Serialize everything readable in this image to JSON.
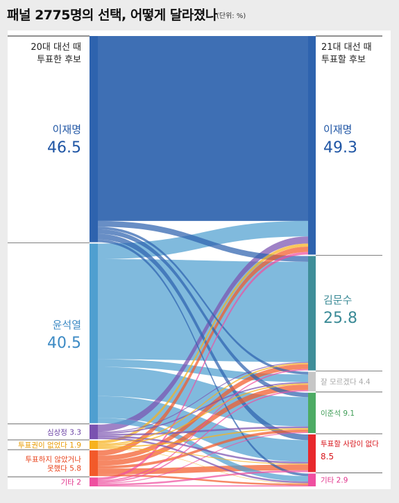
{
  "header": {
    "title": "패널 2775명의 선택, 어떻게 달라졌나",
    "unit": "(단위: %)"
  },
  "chart_data": {
    "type": "sankey",
    "left_header": [
      "20대 대선 때",
      "투표한 후보"
    ],
    "right_header": [
      "21대 대선 때",
      "투표할 후보"
    ],
    "left": [
      {
        "id": "lee",
        "name": "이재명",
        "value": 46.5,
        "color": "#2e63ae",
        "text_color": "#1f55a4"
      },
      {
        "id": "yoon",
        "name": "윤석열",
        "value": 40.5,
        "color": "#4f9fd0",
        "text_color": "#3c8ac4"
      },
      {
        "id": "shim",
        "name": "심상정",
        "value": 3.3,
        "color": "#7a52b0",
        "text_color": "#6a40a4"
      },
      {
        "id": "novote_right",
        "name": "투표권이 없었다",
        "value": 1.9,
        "color": "#f7b21d",
        "text_color": "#e89a00"
      },
      {
        "id": "novote",
        "name": "투표하지 않았거나 못했다",
        "lines": [
          "투표하지 않았거나",
          "못했다"
        ],
        "value": 5.8,
        "color": "#f25a2a",
        "text_color": "#e8431c"
      },
      {
        "id": "etc",
        "name": "기타",
        "value": 2,
        "color": "#ef4fa0",
        "text_color": "#e0308a"
      }
    ],
    "right": [
      {
        "id": "lee",
        "name": "이재명",
        "value": 49.3,
        "color": "#2e63ae",
        "text_color": "#1f55a4"
      },
      {
        "id": "kim",
        "name": "김문수",
        "value": 25.8,
        "color": "#3f8e99",
        "text_color": "#3a8a96"
      },
      {
        "id": "dunno",
        "name": "잘 모르겠다",
        "value": 4.4,
        "color": "#c6c6c6",
        "text_color": "#a8a8a8"
      },
      {
        "id": "ljs",
        "name": "이준석",
        "value": 9.1,
        "color": "#4dab64",
        "text_color": "#3e9c55"
      },
      {
        "id": "nobody",
        "name": "투표할 사람이 없다",
        "value": 8.5,
        "color": "#e8282c",
        "text_color": "#d8161c"
      },
      {
        "id": "etc",
        "name": "기타",
        "value": 2.9,
        "color": "#ef4fa0",
        "text_color": "#e0308a"
      }
    ],
    "flows": [
      {
        "from": "lee",
        "to": "lee",
        "value": 41.7
      },
      {
        "from": "lee",
        "to": "kim",
        "value": 1.3
      },
      {
        "from": "lee",
        "to": "dunno",
        "value": 0.6
      },
      {
        "from": "lee",
        "to": "ljs",
        "value": 1.0
      },
      {
        "from": "lee",
        "to": "nobody",
        "value": 1.3
      },
      {
        "from": "lee",
        "to": "etc",
        "value": 0.6
      },
      {
        "from": "yoon",
        "to": "lee",
        "value": 3.5
      },
      {
        "from": "yoon",
        "to": "kim",
        "value": 22.6
      },
      {
        "from": "yoon",
        "to": "dunno",
        "value": 1.7
      },
      {
        "from": "yoon",
        "to": "ljs",
        "value": 6.6
      },
      {
        "from": "yoon",
        "to": "nobody",
        "value": 4.9
      },
      {
        "from": "yoon",
        "to": "etc",
        "value": 1.2
      },
      {
        "from": "shim",
        "to": "lee",
        "value": 1.6
      },
      {
        "from": "shim",
        "to": "kim",
        "value": 0.2
      },
      {
        "from": "shim",
        "to": "dunno",
        "value": 0.3
      },
      {
        "from": "shim",
        "to": "ljs",
        "value": 0.4
      },
      {
        "from": "shim",
        "to": "nobody",
        "value": 0.4
      },
      {
        "from": "shim",
        "to": "etc",
        "value": 0.4
      },
      {
        "from": "novote_right",
        "to": "lee",
        "value": 0.7
      },
      {
        "from": "novote_right",
        "to": "kim",
        "value": 0.3
      },
      {
        "from": "novote_right",
        "to": "dunno",
        "value": 0.3
      },
      {
        "from": "novote_right",
        "to": "ljs",
        "value": 0.3
      },
      {
        "from": "novote_right",
        "to": "nobody",
        "value": 0.2
      },
      {
        "from": "novote_right",
        "to": "etc",
        "value": 0.1
      },
      {
        "from": "novote",
        "to": "lee",
        "value": 1.2
      },
      {
        "from": "novote",
        "to": "kim",
        "value": 1.1
      },
      {
        "from": "novote",
        "to": "dunno",
        "value": 1.2
      },
      {
        "from": "novote",
        "to": "ljs",
        "value": 0.6
      },
      {
        "from": "novote",
        "to": "nobody",
        "value": 1.3
      },
      {
        "from": "novote",
        "to": "etc",
        "value": 0.4
      },
      {
        "from": "etc",
        "to": "lee",
        "value": 0.6
      },
      {
        "from": "etc",
        "to": "kim",
        "value": 0.3
      },
      {
        "from": "etc",
        "to": "dunno",
        "value": 0.3
      },
      {
        "from": "etc",
        "to": "ljs",
        "value": 0.2
      },
      {
        "from": "etc",
        "to": "nobody",
        "value": 0.4
      },
      {
        "from": "etc",
        "to": "etc",
        "value": 0.2
      }
    ]
  }
}
